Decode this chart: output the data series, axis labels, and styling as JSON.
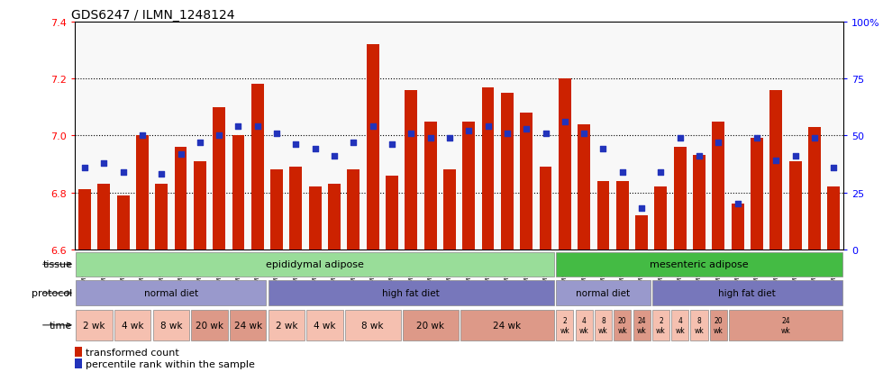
{
  "title": "GDS6247 / ILMN_1248124",
  "samples": [
    "GSM971546",
    "GSM971547",
    "GSM971548",
    "GSM971549",
    "GSM971550",
    "GSM971551",
    "GSM971552",
    "GSM971553",
    "GSM971554",
    "GSM971555",
    "GSM971556",
    "GSM971557",
    "GSM971558",
    "GSM971559",
    "GSM971560",
    "GSM971561",
    "GSM971562",
    "GSM971563",
    "GSM971564",
    "GSM971565",
    "GSM971566",
    "GSM971567",
    "GSM971568",
    "GSM971569",
    "GSM971570",
    "GSM971571",
    "GSM971572",
    "GSM971573",
    "GSM971574",
    "GSM971575",
    "GSM971576",
    "GSM971577",
    "GSM971578",
    "GSM971579",
    "GSM971580",
    "GSM971581",
    "GSM971582",
    "GSM971583",
    "GSM971584",
    "GSM971585"
  ],
  "bar_values": [
    6.81,
    6.83,
    6.79,
    7.0,
    6.83,
    6.96,
    6.91,
    7.1,
    7.0,
    7.18,
    6.88,
    6.89,
    6.82,
    6.83,
    6.88,
    7.32,
    6.86,
    7.16,
    7.05,
    6.88,
    7.05,
    7.17,
    7.15,
    7.08,
    6.89,
    7.2,
    7.04,
    6.84,
    6.84,
    6.72,
    6.82,
    6.96,
    6.93,
    7.05,
    6.76,
    6.99,
    7.16,
    6.91,
    7.03,
    6.82
  ],
  "percentile_values": [
    36,
    38,
    34,
    50,
    33,
    42,
    47,
    50,
    54,
    54,
    51,
    46,
    44,
    41,
    47,
    54,
    46,
    51,
    49,
    49,
    52,
    54,
    51,
    53,
    51,
    56,
    51,
    44,
    34,
    18,
    34,
    49,
    41,
    47,
    20,
    49,
    39,
    41,
    49,
    36
  ],
  "ylim_left": [
    6.6,
    7.4
  ],
  "ylim_right": [
    0,
    100
  ],
  "yticks_left": [
    6.6,
    6.8,
    7.0,
    7.2,
    7.4
  ],
  "yticks_right": [
    0,
    25,
    50,
    75,
    100
  ],
  "ytick_labels_right": [
    "0",
    "25",
    "50",
    "75",
    "100%"
  ],
  "bar_color": "#CC2200",
  "dot_color": "#2233BB",
  "bar_bottom": 6.6,
  "bg_color": "#f0f0f0",
  "tissue_groups": [
    {
      "label": "epididymal adipose",
      "start": 0,
      "end": 25,
      "color": "#99dd99"
    },
    {
      "label": "mesenteric adipose",
      "start": 25,
      "end": 40,
      "color": "#44bb44"
    }
  ],
  "protocol_groups": [
    {
      "label": "normal diet",
      "start": 0,
      "end": 10,
      "color": "#9999cc"
    },
    {
      "label": "high fat diet",
      "start": 10,
      "end": 25,
      "color": "#7777bb"
    },
    {
      "label": "normal diet",
      "start": 25,
      "end": 30,
      "color": "#9999cc"
    },
    {
      "label": "high fat diet",
      "start": 30,
      "end": 40,
      "color": "#7777bb"
    }
  ],
  "time_groups": [
    {
      "label": "2 wk",
      "start": 0,
      "end": 2,
      "small": false,
      "color": "#f5c0b0"
    },
    {
      "label": "4 wk",
      "start": 2,
      "end": 4,
      "small": false,
      "color": "#f5c0b0"
    },
    {
      "label": "8 wk",
      "start": 4,
      "end": 6,
      "small": false,
      "color": "#f5c0b0"
    },
    {
      "label": "20 wk",
      "start": 6,
      "end": 8,
      "small": false,
      "color": "#dd9988"
    },
    {
      "label": "24 wk",
      "start": 8,
      "end": 10,
      "small": false,
      "color": "#dd9988"
    },
    {
      "label": "2 wk",
      "start": 10,
      "end": 12,
      "small": false,
      "color": "#f5c0b0"
    },
    {
      "label": "4 wk",
      "start": 12,
      "end": 14,
      "small": false,
      "color": "#f5c0b0"
    },
    {
      "label": "8 wk",
      "start": 14,
      "end": 17,
      "small": false,
      "color": "#f5c0b0"
    },
    {
      "label": "20 wk",
      "start": 17,
      "end": 20,
      "small": false,
      "color": "#dd9988"
    },
    {
      "label": "24 wk",
      "start": 20,
      "end": 25,
      "small": false,
      "color": "#dd9988"
    },
    {
      "label": "2\nwk",
      "start": 25,
      "end": 26,
      "small": true,
      "color": "#f5c0b0"
    },
    {
      "label": "4\nwk",
      "start": 26,
      "end": 27,
      "small": true,
      "color": "#f5c0b0"
    },
    {
      "label": "8\nwk",
      "start": 27,
      "end": 28,
      "small": true,
      "color": "#f5c0b0"
    },
    {
      "label": "20\nwk",
      "start": 28,
      "end": 29,
      "small": true,
      "color": "#dd9988"
    },
    {
      "label": "24\nwk",
      "start": 29,
      "end": 30,
      "small": true,
      "color": "#dd9988"
    },
    {
      "label": "2\nwk",
      "start": 30,
      "end": 31,
      "small": true,
      "color": "#f5c0b0"
    },
    {
      "label": "4\nwk",
      "start": 31,
      "end": 32,
      "small": true,
      "color": "#f5c0b0"
    },
    {
      "label": "8\nwk",
      "start": 32,
      "end": 33,
      "small": true,
      "color": "#f5c0b0"
    },
    {
      "label": "20\nwk",
      "start": 33,
      "end": 34,
      "small": true,
      "color": "#dd9988"
    },
    {
      "label": "24\nwk",
      "start": 34,
      "end": 40,
      "small": true,
      "color": "#dd9988"
    }
  ],
  "legend_items": [
    {
      "label": "transformed count",
      "color": "#CC2200"
    },
    {
      "label": "percentile rank within the sample",
      "color": "#2233BB"
    }
  ]
}
